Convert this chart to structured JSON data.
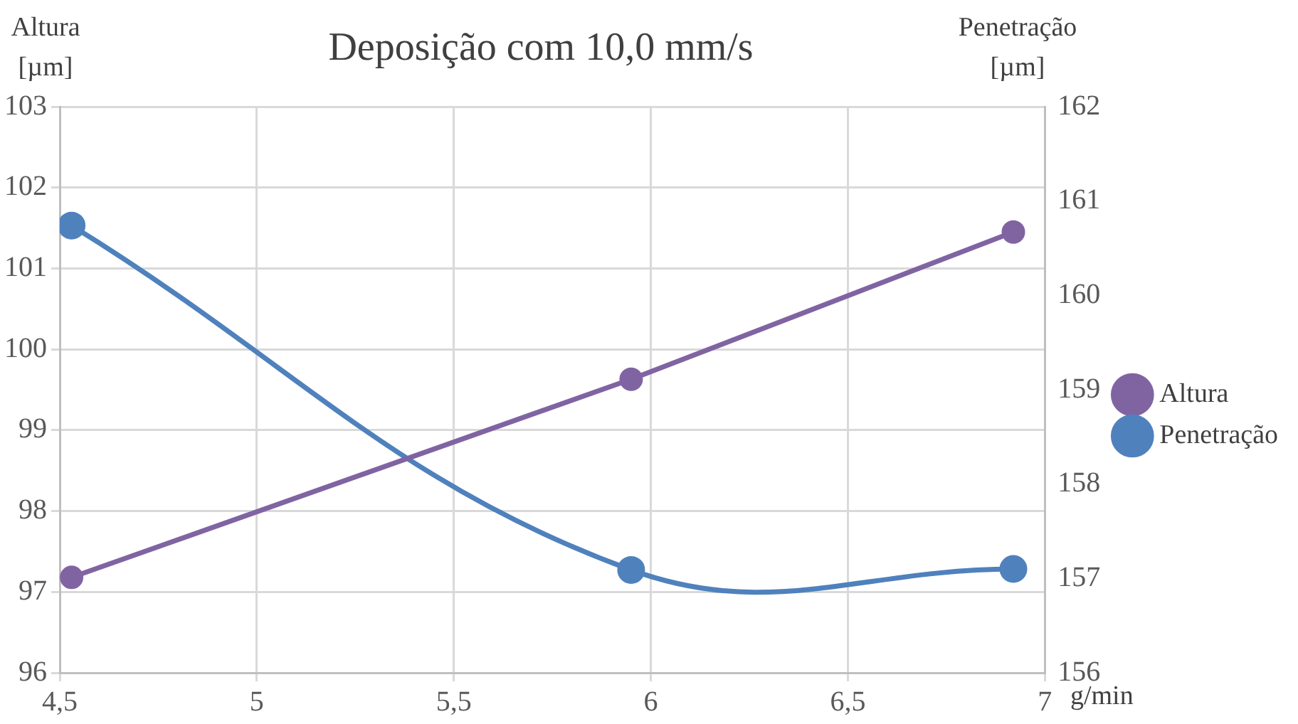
{
  "chart_data": {
    "type": "line",
    "title": "Deposição com 10,0 mm/s",
    "xlabel": "g/min",
    "ylabel": "Altura [µm]",
    "y2label": "Penetração [µm]",
    "x": [
      4.53,
      5.95,
      6.92
    ],
    "series": [
      {
        "name": "Altura",
        "color": "#8064a2",
        "values": [
          97.18,
          99.63,
          101.45
        ]
      },
      {
        "name": "Penetração",
        "color": "#4f81bd",
        "axis": "y2",
        "values": [
          160.74,
          157.09,
          157.1
        ]
      }
    ],
    "xlim": [
      4.5,
      7
    ],
    "xticks": [
      {
        "value": 4.5,
        "label": "4,5"
      },
      5,
      {
        "value": 5.5,
        "label": "5,5"
      },
      6,
      {
        "value": 6.5,
        "label": "6,5"
      },
      7
    ],
    "ylim": [
      96,
      103
    ],
    "yticks": [
      96,
      97,
      98,
      99,
      100,
      101,
      102,
      103
    ],
    "y2lim": [
      156,
      162
    ],
    "y2ticks": [
      156,
      157,
      158,
      159,
      160,
      161,
      162
    ],
    "grid": true,
    "legend": "right",
    "marker": "circle",
    "line_style": "solid"
  }
}
